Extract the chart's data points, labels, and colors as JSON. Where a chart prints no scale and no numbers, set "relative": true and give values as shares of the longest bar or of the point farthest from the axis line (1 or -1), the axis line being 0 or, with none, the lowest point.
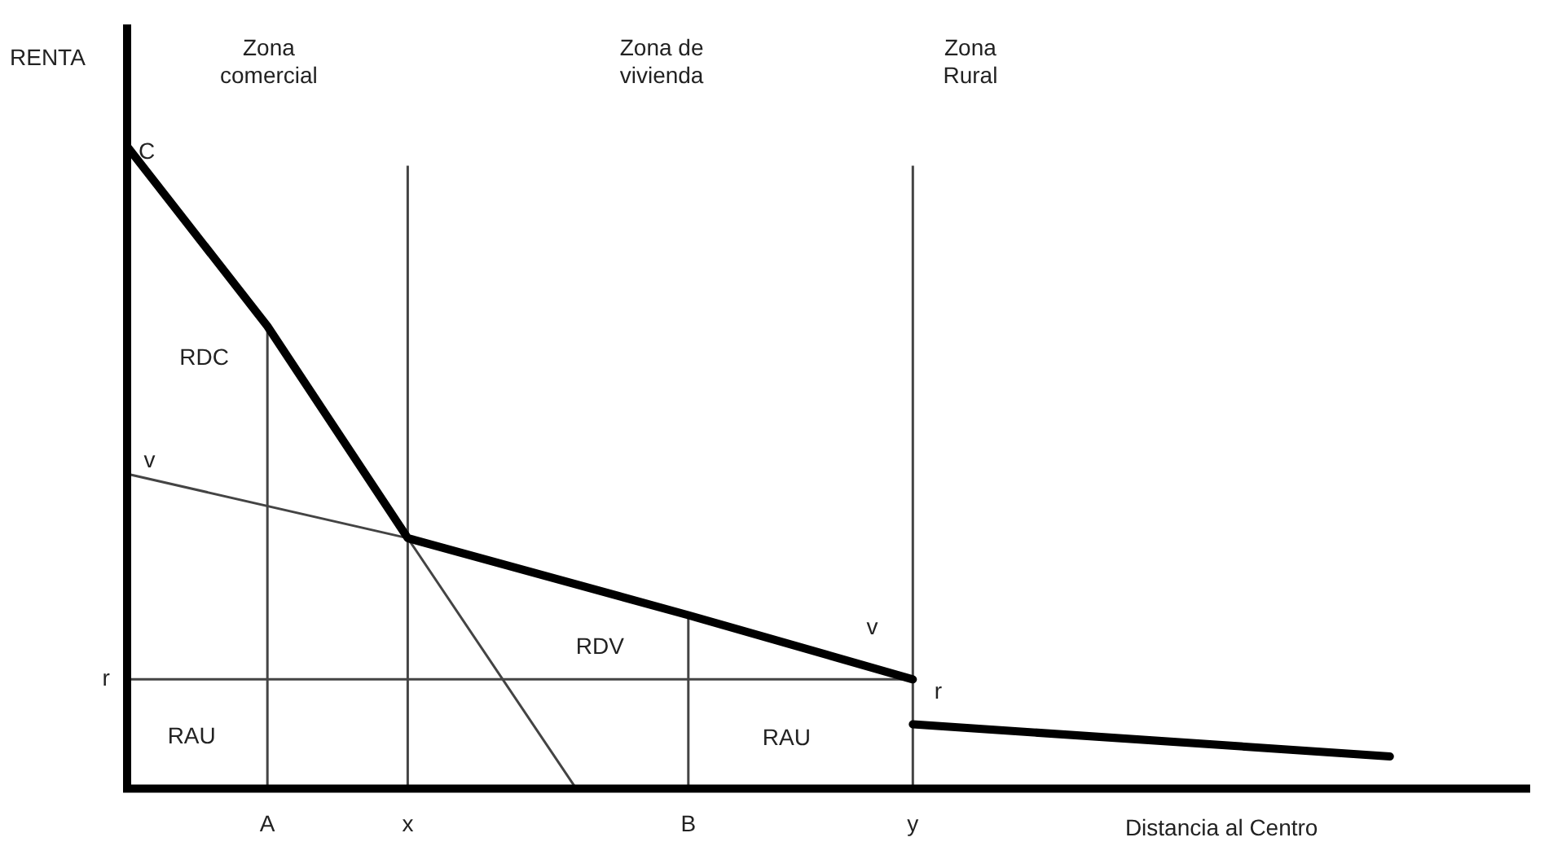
{
  "chart_data": {
    "type": "line",
    "relative": true,
    "ylabel": "RENTA",
    "xlabel": "Distancia al Centro",
    "marker": "none",
    "line_style": "solid",
    "categories": [
      null,
      null,
      null,
      null,
      null,
      "A",
      null,
      null,
      null,
      null,
      "x",
      null,
      null,
      null,
      null,
      null,
      null,
      null,
      null,
      null,
      "B",
      null,
      null,
      null,
      null,
      null,
      null,
      null,
      "y",
      null,
      null,
      null,
      null,
      null,
      null,
      null,
      null,
      null,
      null,
      null,
      null,
      null,
      null,
      null,
      null,
      null,
      null,
      null,
      null,
      null,
      null
    ],
    "series": [
      {
        "color": "#000000",
        "values": [
          1,
          null,
          null,
          null,
          null,
          0.72,
          null,
          null,
          null,
          null,
          0.39,
          null,
          null,
          null,
          null,
          null,
          null,
          null,
          null,
          null,
          0.27,
          null,
          null,
          null,
          null,
          null,
          null,
          null,
          0.17,
          null,
          null,
          null,
          null,
          null,
          null,
          null,
          null,
          null,
          null,
          null,
          null,
          null,
          null,
          null,
          null,
          null,
          null,
          null,
          null,
          null,
          null
        ]
      },
      {
        "color": "#000000",
        "values": [
          null,
          null,
          null,
          null,
          null,
          null,
          null,
          null,
          null,
          null,
          null,
          null,
          null,
          null,
          null,
          null,
          null,
          null,
          null,
          null,
          null,
          null,
          null,
          null,
          null,
          null,
          null,
          null,
          0.1,
          null,
          null,
          null,
          null,
          null,
          null,
          null,
          null,
          null,
          null,
          null,
          null,
          null,
          null,
          null,
          null,
          0.05,
          null,
          null,
          null,
          null,
          null
        ]
      },
      {
        "color": "#444444",
        "values": [
          null,
          null,
          null,
          null,
          null,
          null,
          null,
          null,
          null,
          null,
          0.39,
          null,
          null,
          null,
          null,
          null,
          0,
          null,
          null,
          null,
          null,
          null,
          null,
          null,
          null,
          null,
          null,
          null,
          null,
          null,
          null,
          null,
          null,
          null,
          null,
          null,
          null,
          null,
          null,
          null,
          null,
          null,
          null,
          null,
          null,
          null,
          null,
          null,
          null,
          null,
          null
        ]
      },
      {
        "color": "#444444",
        "values": [
          0.49,
          null,
          null,
          null,
          null,
          null,
          null,
          null,
          null,
          null,
          0.39,
          null,
          null,
          null,
          null,
          null,
          null,
          null,
          null,
          null,
          null,
          null,
          null,
          null,
          null,
          null,
          null,
          null,
          null,
          null,
          null,
          null,
          null,
          null,
          null,
          null,
          null,
          null,
          null,
          null,
          null,
          null,
          null,
          null,
          null,
          null,
          null,
          null,
          null,
          null,
          null
        ]
      },
      {
        "color": "#444444",
        "values": [
          0.17,
          null,
          null,
          null,
          null,
          null,
          null,
          null,
          null,
          null,
          null,
          null,
          null,
          null,
          null,
          null,
          null,
          null,
          null,
          null,
          null,
          null,
          null,
          null,
          null,
          null,
          null,
          null,
          0.17,
          null,
          null,
          null,
          null,
          null,
          null,
          null,
          null,
          null,
          null,
          null,
          null,
          null,
          null,
          null,
          null,
          null,
          null,
          null,
          null,
          null,
          null
        ]
      }
    ],
    "ref_lines": [
      {
        "axis": "x",
        "value": "A",
        "color": "#444444"
      },
      {
        "axis": "x",
        "value": "x",
        "color": "#444444"
      },
      {
        "axis": "x",
        "value": "B",
        "color": "#444444"
      },
      {
        "axis": "x",
        "value": "y",
        "color": "#444444"
      }
    ],
    "annotations": [
      "Zona\ncomercial",
      "Zona de\nvivienda",
      "Zona\nRural",
      "RDC",
      "RAU",
      "RDV",
      "RAU",
      "C",
      "v",
      "r",
      "v",
      "r"
    ]
  }
}
